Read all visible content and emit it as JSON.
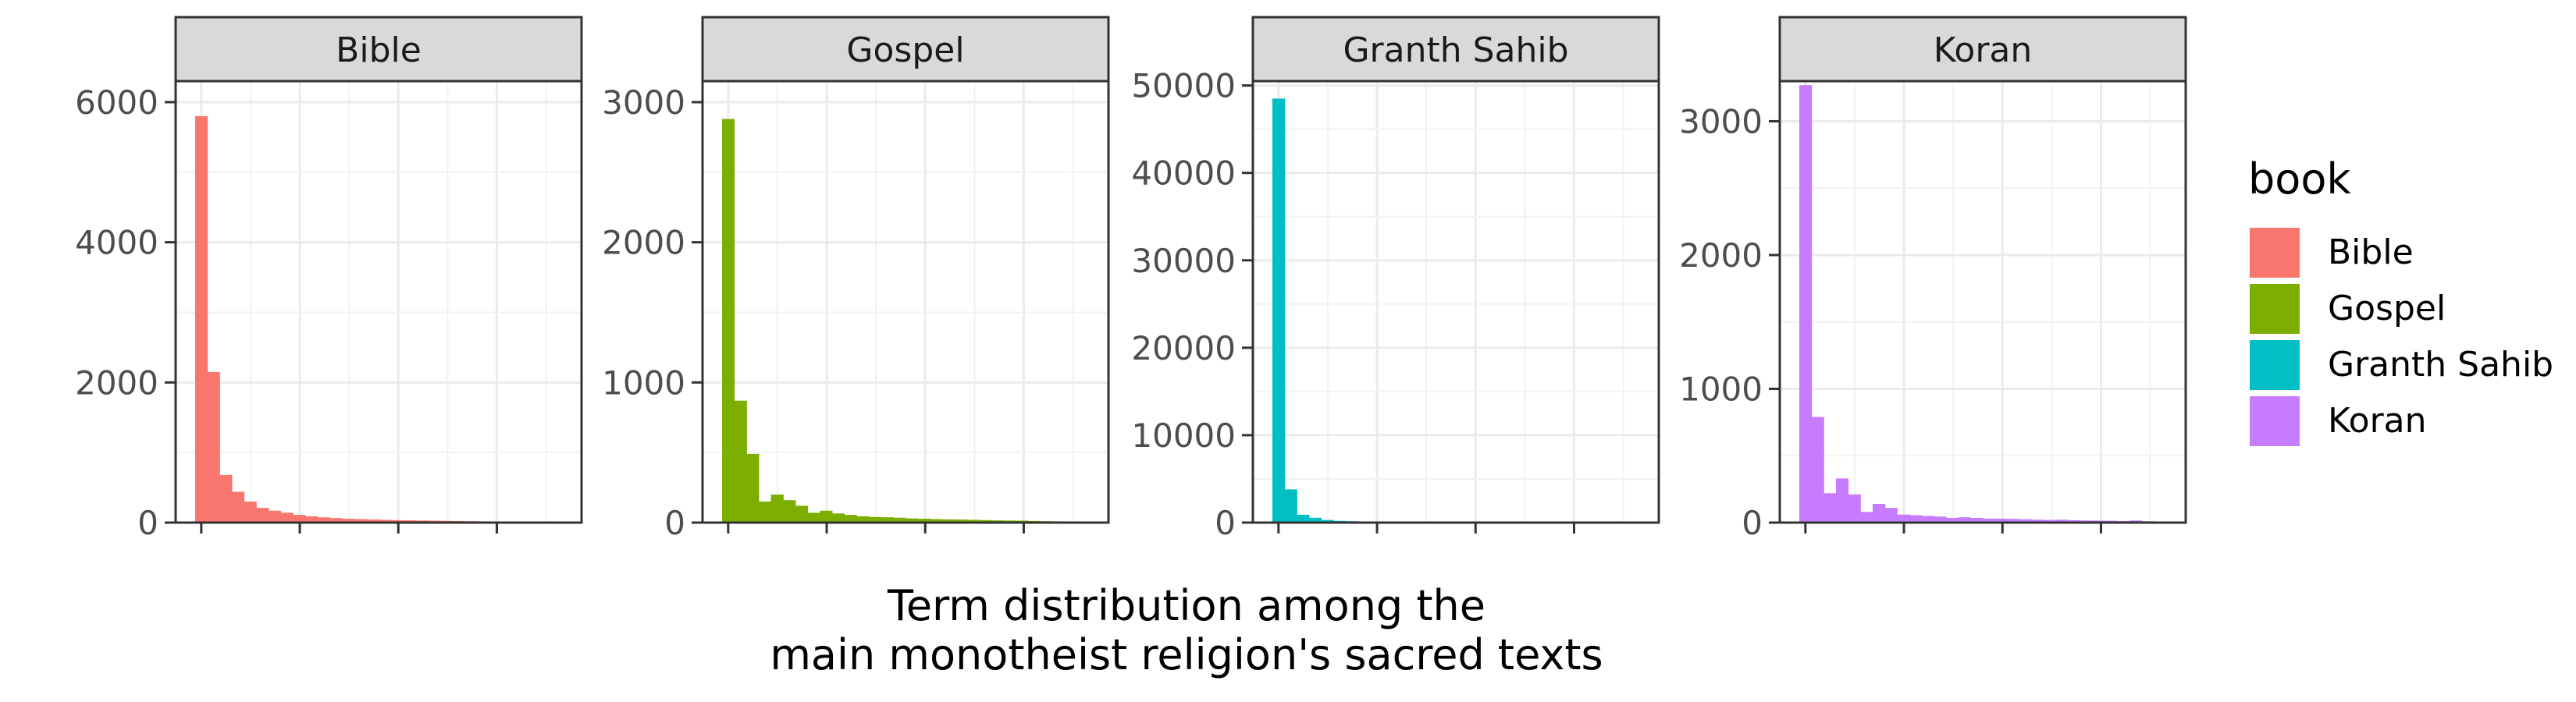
{
  "chart_data": {
    "type": "bar",
    "xlabel": "Term distribution among the\nmain monotheist religion's sacred texts",
    "ylabel": "",
    "legend": {
      "title": "book",
      "placement": "right",
      "entries": [
        {
          "label": "Bible",
          "color": "#F8766D"
        },
        {
          "label": "Gospel",
          "color": "#7CAE00"
        },
        {
          "label": "Granth Sahib",
          "color": "#00BFC4"
        },
        {
          "label": "Koran",
          "color": "#C77CFF"
        }
      ]
    },
    "grid": true,
    "panels": [
      {
        "title": "Bible",
        "color": "#F8766D",
        "ylim": [
          0,
          6300
        ],
        "yticks": [
          0,
          2000,
          4000,
          6000
        ],
        "bin_count": 30,
        "values": [
          5800,
          2150,
          680,
          440,
          300,
          210,
          170,
          140,
          110,
          90,
          75,
          65,
          55,
          50,
          45,
          40,
          35,
          33,
          30,
          28,
          25,
          22,
          20,
          18,
          16,
          14,
          12,
          10,
          8,
          6
        ]
      },
      {
        "title": "Gospel",
        "color": "#7CAE00",
        "ylim": [
          0,
          3150
        ],
        "yticks": [
          0,
          1000,
          2000,
          3000
        ],
        "bin_count": 30,
        "values": [
          2880,
          870,
          490,
          150,
          200,
          160,
          120,
          70,
          85,
          65,
          55,
          45,
          40,
          38,
          35,
          30,
          28,
          25,
          23,
          22,
          20,
          18,
          16,
          15,
          14,
          12,
          10,
          9,
          8,
          6
        ]
      },
      {
        "title": "Granth Sahib",
        "color": "#00BFC4",
        "ylim": [
          0,
          50500
        ],
        "yticks": [
          0,
          10000,
          20000,
          30000,
          40000,
          50000
        ],
        "bin_count": 30,
        "values": [
          48500,
          3800,
          900,
          550,
          300,
          200,
          160,
          120,
          110,
          100,
          90,
          85,
          80,
          75,
          70,
          65,
          60,
          55,
          50,
          0,
          0,
          0,
          35,
          0,
          0,
          0,
          0,
          0,
          0,
          0
        ]
      },
      {
        "title": "Koran",
        "color": "#C77CFF",
        "ylim": [
          0,
          3300
        ],
        "yticks": [
          0,
          1000,
          2000,
          3000
        ],
        "bin_count": 30,
        "values": [
          3270,
          790,
          220,
          330,
          210,
          80,
          140,
          110,
          60,
          55,
          50,
          45,
          35,
          40,
          35,
          30,
          30,
          28,
          25,
          22,
          20,
          22,
          18,
          16,
          15,
          14,
          12,
          16,
          10,
          8
        ]
      }
    ]
  }
}
